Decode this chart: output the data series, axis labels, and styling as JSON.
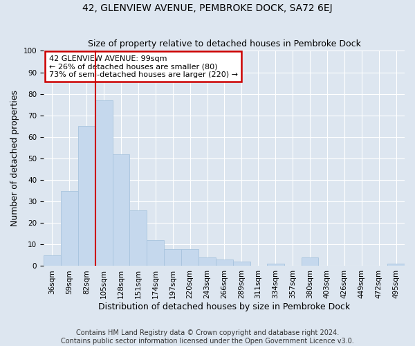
{
  "title": "42, GLENVIEW AVENUE, PEMBROKE DOCK, SA72 6EJ",
  "subtitle": "Size of property relative to detached houses in Pembroke Dock",
  "xlabel": "Distribution of detached houses by size in Pembroke Dock",
  "ylabel": "Number of detached properties",
  "bar_labels": [
    "36sqm",
    "59sqm",
    "82sqm",
    "105sqm",
    "128sqm",
    "151sqm",
    "174sqm",
    "197sqm",
    "220sqm",
    "243sqm",
    "266sqm",
    "289sqm",
    "311sqm",
    "334sqm",
    "357sqm",
    "380sqm",
    "403sqm",
    "426sqm",
    "449sqm",
    "472sqm",
    "495sqm"
  ],
  "bar_values": [
    5,
    35,
    65,
    77,
    52,
    26,
    12,
    8,
    8,
    4,
    3,
    2,
    0,
    1,
    0,
    4,
    0,
    0,
    0,
    0,
    1
  ],
  "bar_color": "#c5d8ed",
  "bar_edge_color": "#a8c4de",
  "bin_edges": [
    36,
    59,
    82,
    105,
    128,
    151,
    174,
    197,
    220,
    243,
    266,
    289,
    311,
    334,
    357,
    380,
    403,
    426,
    449,
    472,
    495
  ],
  "bin_width": 23,
  "ylim": [
    0,
    100
  ],
  "yticks": [
    0,
    10,
    20,
    30,
    40,
    50,
    60,
    70,
    80,
    90,
    100
  ],
  "annotation_line1": "42 GLENVIEW AVENUE: 99sqm",
  "annotation_line2": "← 26% of detached houses are smaller (80)",
  "annotation_line3": "73% of semi-detached houses are larger (220) →",
  "annotation_box_color": "#ffffff",
  "annotation_border_color": "#cc0000",
  "vline_color": "#cc0000",
  "vline_x": 105,
  "footer1": "Contains HM Land Registry data © Crown copyright and database right 2024.",
  "footer2": "Contains public sector information licensed under the Open Government Licence v3.0.",
  "background_color": "#dde6f0",
  "plot_background": "#dde6f0",
  "title_fontsize": 10,
  "subtitle_fontsize": 9,
  "axis_label_fontsize": 9,
  "tick_fontsize": 7.5,
  "footer_fontsize": 7,
  "annotation_fontsize": 8
}
